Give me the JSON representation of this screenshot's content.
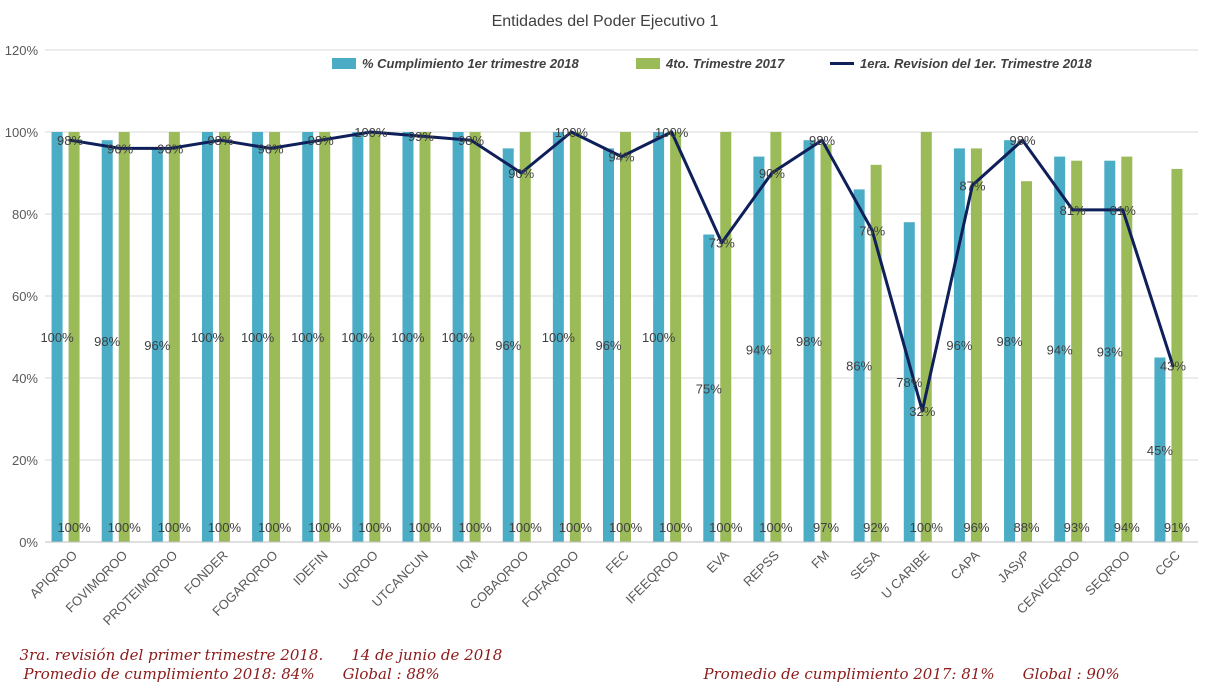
{
  "chart_data": {
    "type": "bar",
    "title": "Entidades del Poder Ejecutivo 1",
    "ylim": [
      0,
      120
    ],
    "yticks": [
      "0%",
      "20%",
      "40%",
      "60%",
      "80%",
      "100%",
      "120%"
    ],
    "grid": true,
    "legend_position": "top",
    "categories": [
      "APIQROO",
      "FOVIMQROO",
      "PROTEIMQROO",
      "FONDER",
      "FOGARQROO",
      "IDEFIN",
      "UQROO",
      "UTCANCUN",
      "IQM",
      "COBAQROO",
      "FOFAQROO",
      "FEC",
      "IFEEQROO",
      "EVA",
      "REPSS",
      "FM",
      "SESA",
      "U CARIBE",
      "CAPA",
      "JASyP",
      "CEAVEQROO",
      "SEQROO",
      "CGC"
    ],
    "series": [
      {
        "name": "% Cumplimiento 1er trimestre 2018",
        "type": "bar",
        "color": "#4bacc6",
        "values": [
          100,
          98,
          96,
          100,
          100,
          100,
          100,
          100,
          100,
          96,
          100,
          96,
          100,
          75,
          94,
          98,
          86,
          78,
          96,
          98,
          94,
          93,
          45
        ],
        "labels": [
          "100%",
          "98%",
          "96%",
          "100%",
          "100%",
          "100%",
          "100%",
          "100%",
          "100%",
          "96%",
          "100%",
          "96%",
          "100%",
          "75%",
          "94%",
          "98%",
          "86%",
          "78%",
          "96%",
          "98%",
          "94%",
          "93%",
          "45%"
        ]
      },
      {
        "name": "4to. Trimestre 2017",
        "type": "bar",
        "color": "#9bbb59",
        "values": [
          100,
          100,
          100,
          100,
          100,
          100,
          100,
          100,
          100,
          100,
          100,
          100,
          100,
          100,
          100,
          97,
          92,
          100,
          96,
          88,
          93,
          94,
          91
        ],
        "labels": [
          "100%",
          "100%",
          "100%",
          "100%",
          "100%",
          "100%",
          "100%",
          "100%",
          "100%",
          "100%",
          "100%",
          "100%",
          "100%",
          "100%",
          "100%",
          "97%",
          "92%",
          "100%",
          "96%",
          "88%",
          "93%",
          "94%",
          "91%"
        ]
      },
      {
        "name": "1era. Revision del 1er. Trimestre 2018",
        "type": "line",
        "color": "#0f1f5a",
        "values": [
          98,
          96,
          96,
          98,
          96,
          98,
          100,
          99,
          98,
          90,
          100,
          94,
          100,
          73,
          90,
          98,
          76,
          32,
          87,
          98,
          81,
          81,
          43
        ],
        "labels": [
          "98%",
          "96%",
          "96%",
          "98%",
          "96%",
          "98%",
          "100%",
          "99%",
          "98%",
          "90%",
          "100%",
          "94%",
          "100%",
          "73%",
          "90%",
          "98%",
          "76%",
          "32%",
          "87%",
          "98%",
          "81%",
          "81%",
          "43%"
        ]
      }
    ]
  },
  "notes": {
    "revision": "3ra. revisión del primer trimestre 2018.",
    "date": "14 de junio de 2018",
    "avg_2018": "Promedio de cumplimiento 2018: 84%",
    "global_2018": "Global : 88%",
    "avg_2017": "Promedio de cumplimiento 2017: 81%",
    "global_2017": "Global : 90%"
  }
}
